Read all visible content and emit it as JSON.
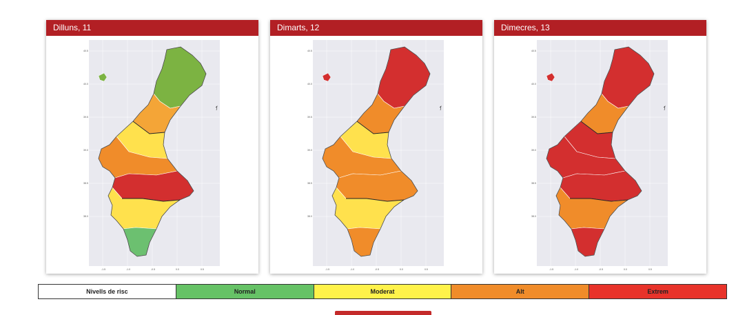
{
  "panels": [
    {
      "title": "Dilluns, 11",
      "zone_colors": [
        "#7cb342",
        "#f4a537",
        "#ffe14d",
        "#f08c2a",
        "#d32f2f",
        "#ffe14d",
        "#6cc070"
      ]
    },
    {
      "title": "Dimarts, 12",
      "zone_colors": [
        "#d32f2f",
        "#f08c2a",
        "#ffe14d",
        "#f08c2a",
        "#f08c2a",
        "#ffe14d",
        "#f08c2a"
      ]
    },
    {
      "title": "Dimecres, 13",
      "zone_colors": [
        "#d32f2f",
        "#f08c2a",
        "#d32f2f",
        "#d32f2f",
        "#d32f2f",
        "#f08c2a",
        "#d32f2f"
      ]
    }
  ],
  "lat_ticks": [
    "40.5",
    "40.0",
    "39.5",
    "39.0",
    "38.5",
    "38.0"
  ],
  "lon_ticks": [
    "-1.5",
    "-1.0",
    "-0.5",
    "0.0",
    "0.5"
  ],
  "legend": {
    "title": "Nivells de risc",
    "items": [
      {
        "label": "Normal",
        "color": "#66c266"
      },
      {
        "label": "Moderat",
        "color": "#fff24a"
      },
      {
        "label": "Alt",
        "color": "#f08c2a"
      },
      {
        "label": "Extrem",
        "color": "#e8332a"
      }
    ]
  },
  "colors": {
    "header": "#b21f24",
    "map_bg": "#e9e9ef"
  }
}
